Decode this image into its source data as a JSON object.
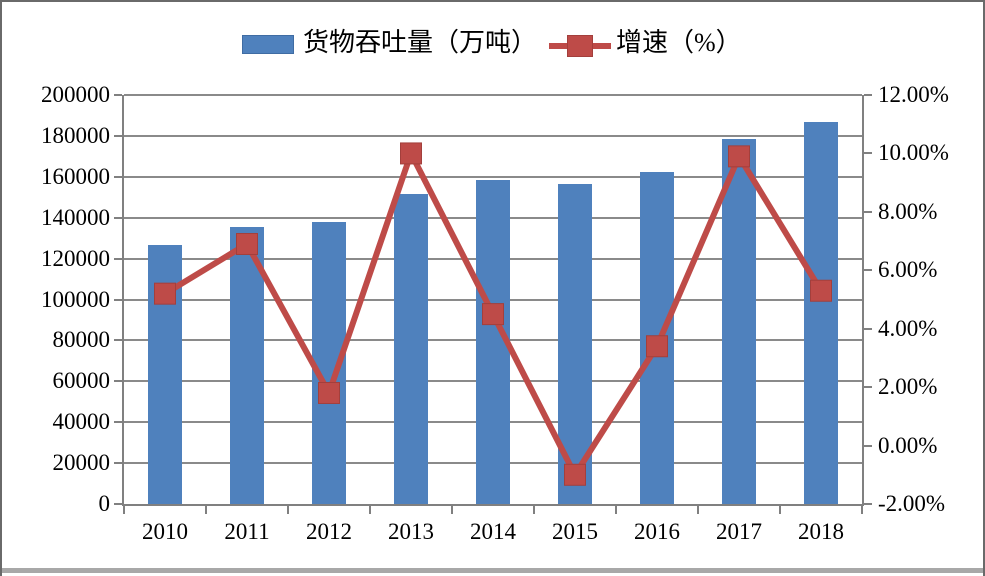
{
  "chart_data": {
    "type": "combo-bar-line",
    "title": "",
    "categories": [
      "2010",
      "2011",
      "2012",
      "2013",
      "2014",
      "2015",
      "2016",
      "2017",
      "2018"
    ],
    "series": [
      {
        "name": "货物吞吐量（万吨）",
        "type": "bar",
        "axis": "left",
        "color": "#4F81BD",
        "values": [
          126500,
          135500,
          138000,
          151500,
          158500,
          156300,
          162500,
          178500,
          187000
        ]
      },
      {
        "name": "增速（%）",
        "type": "line",
        "axis": "right",
        "color": "#BE4B48",
        "values": [
          5.2,
          6.9,
          1.8,
          10.0,
          4.5,
          -1.0,
          3.4,
          9.9,
          5.3
        ]
      }
    ],
    "left_axis": {
      "min": 0,
      "max": 200000,
      "step": 20000,
      "ticks": [
        "200000",
        "180000",
        "160000",
        "140000",
        "120000",
        "100000",
        "80000",
        "60000",
        "40000",
        "20000",
        "0"
      ]
    },
    "right_axis": {
      "min": -2,
      "max": 12,
      "step": 2,
      "ticks": [
        "12.00%",
        "10.00%",
        "8.00%",
        "6.00%",
        "4.00%",
        "2.00%",
        "0.00%",
        "-2.00%"
      ]
    },
    "grid": "horizontal",
    "legend_position": "top-center"
  },
  "legend": {
    "items": [
      {
        "label": "货物吞吐量（万吨）",
        "swatch": "bar",
        "color": "#4F81BD"
      },
      {
        "label": "增速（%）",
        "swatch": "line-marker",
        "color": "#BE4B48"
      }
    ]
  },
  "colors": {
    "bar": "#4F81BD",
    "line": "#BE4B48",
    "grid": "#8A8A8A",
    "axis": "#808080",
    "text": "#000000",
    "background": "#FFFFFF",
    "frame_border": "#6A6A6A"
  }
}
